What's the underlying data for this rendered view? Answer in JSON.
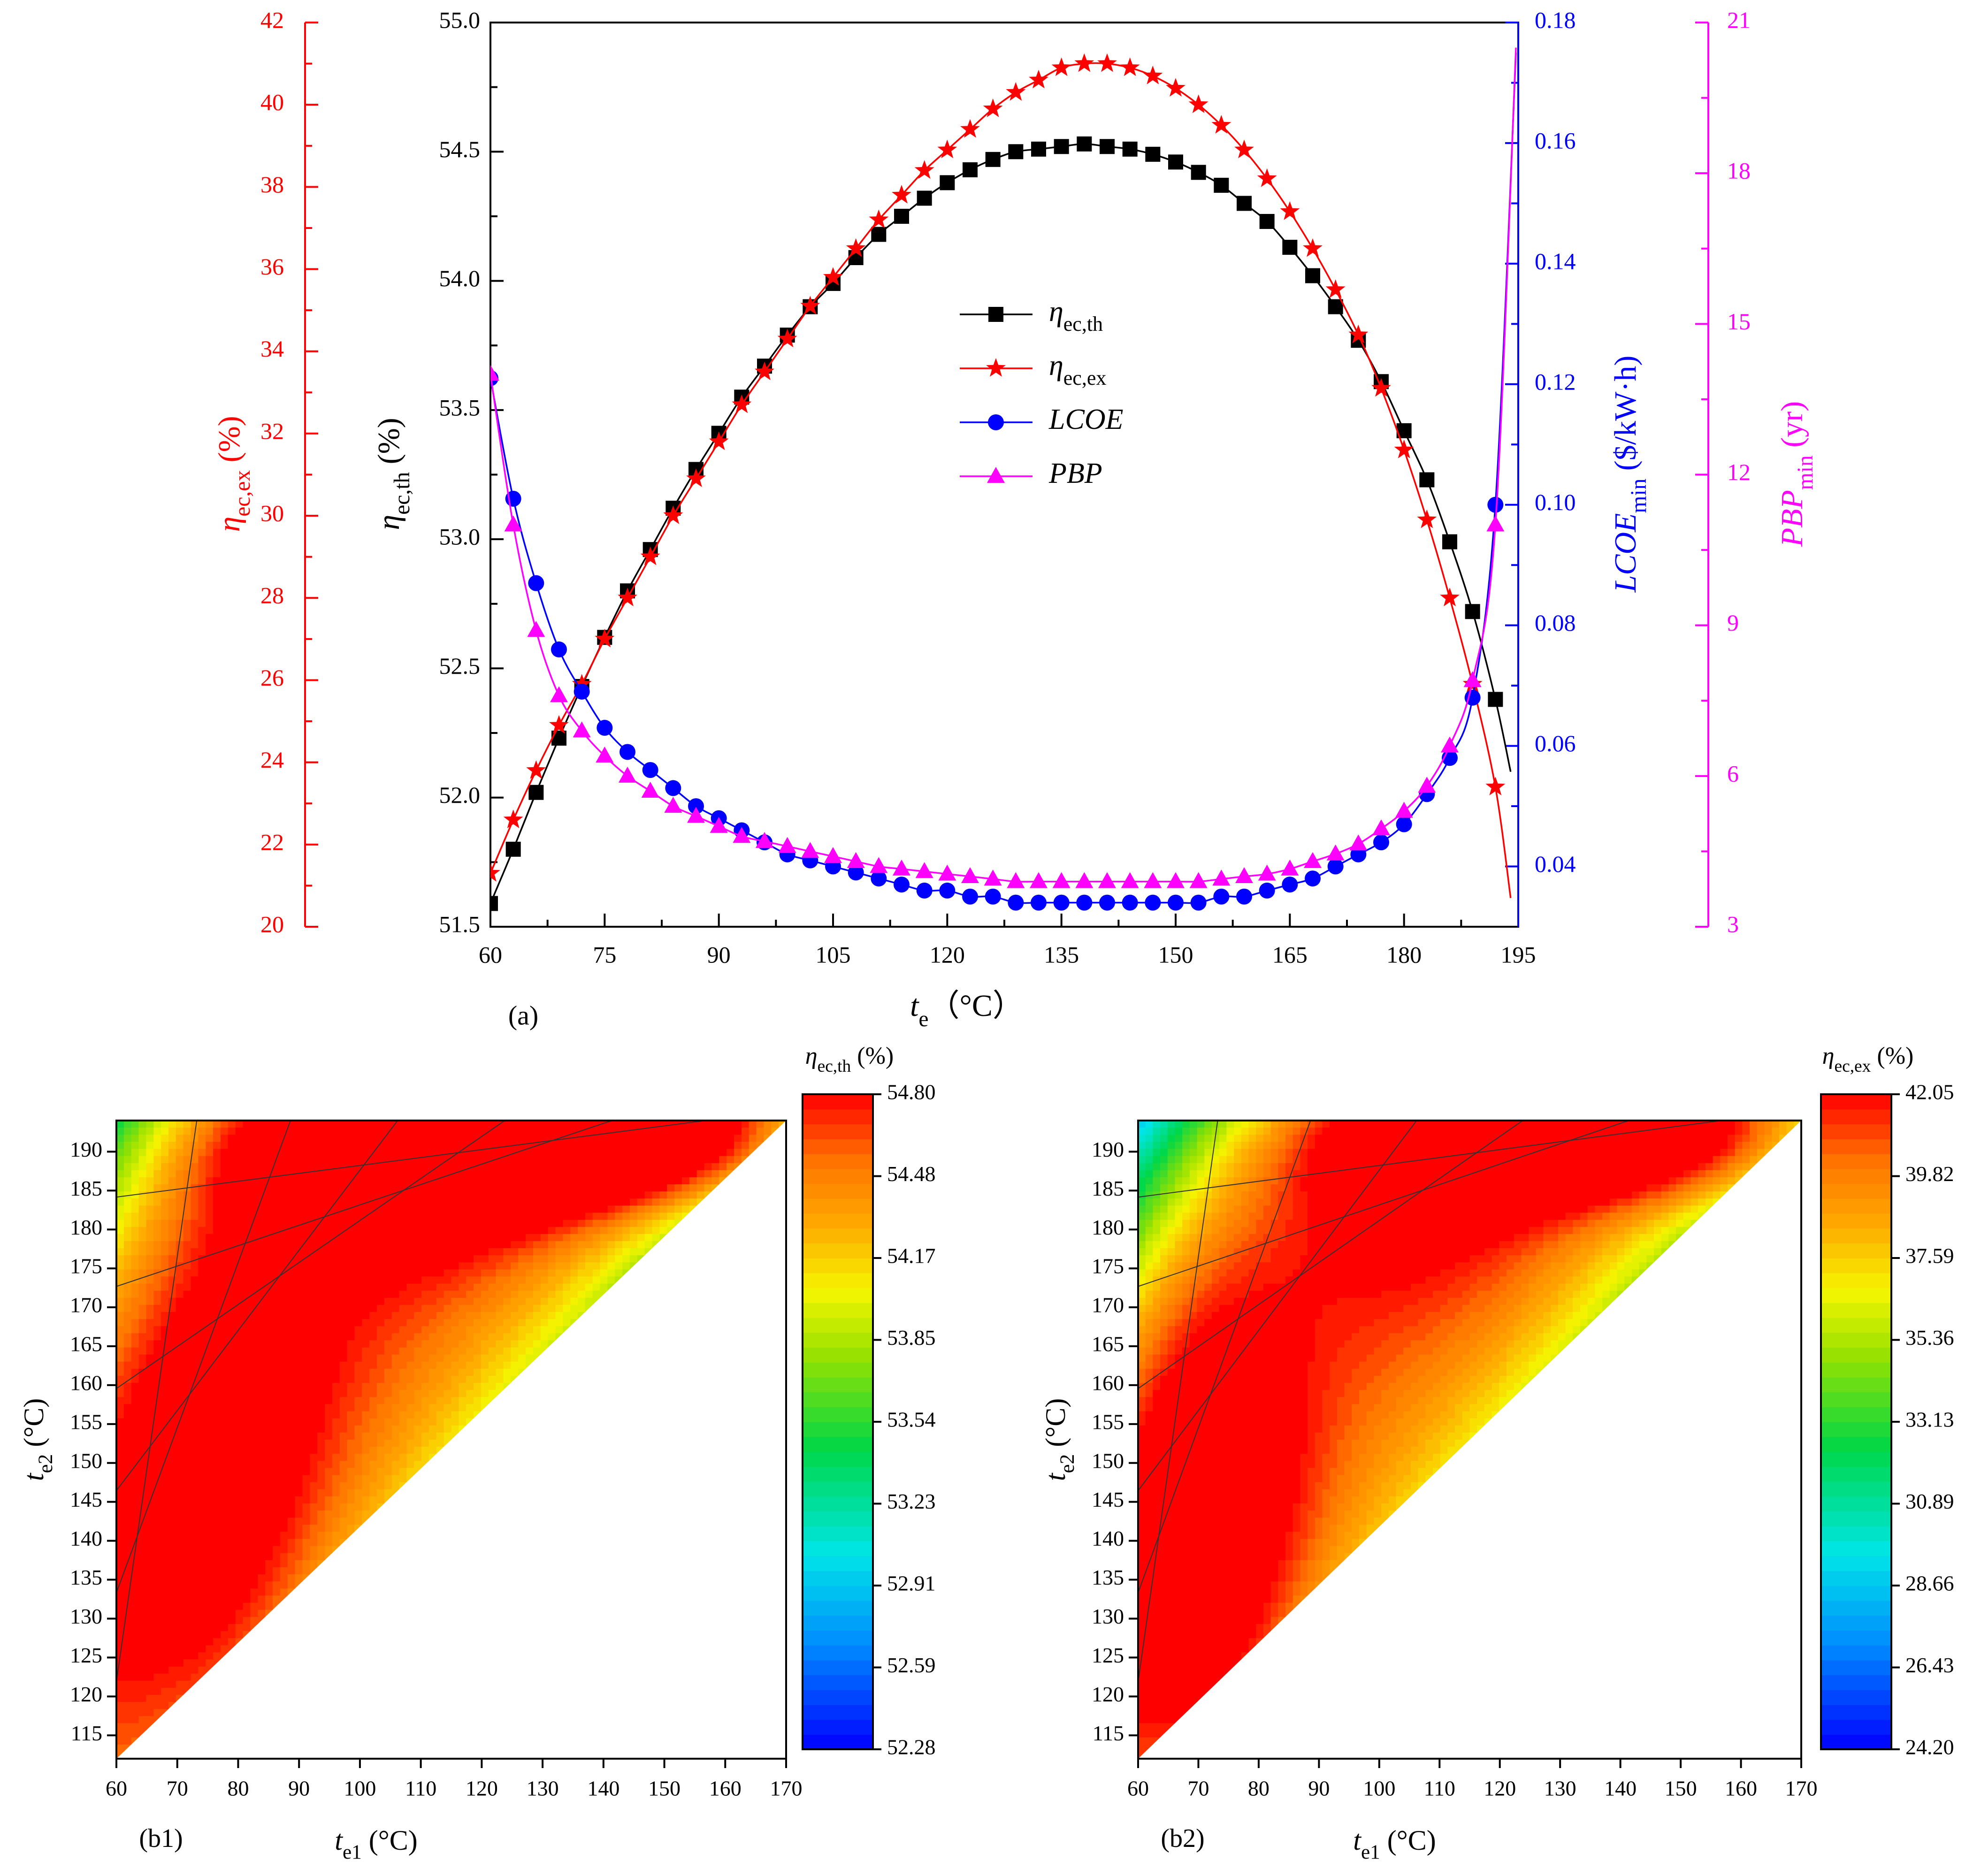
{
  "chart_data": [
    {
      "id": "a",
      "type": "line",
      "panel_label": "(a)",
      "x": [
        60,
        63,
        66,
        69,
        72,
        75,
        78,
        81,
        84,
        87,
        90,
        93,
        96,
        99,
        102,
        105,
        108,
        111,
        114,
        117,
        120,
        123,
        126,
        129,
        132,
        135,
        138,
        141,
        144,
        147,
        150,
        153,
        156,
        159,
        162,
        165,
        168,
        171,
        174,
        177,
        180,
        183,
        186,
        189,
        192
      ],
      "xlim": [
        60,
        195
      ],
      "xticks": [
        "60",
        "75",
        "90",
        "105",
        "120",
        "135",
        "150",
        "165",
        "180",
        "195"
      ],
      "xlabel": {
        "symbol": "t",
        "sub": "e",
        "unit": "（°C）"
      },
      "axes": {
        "eta_th": {
          "range": [
            51.5,
            55.0
          ],
          "color": "#000000",
          "ticks": [
            "51.5",
            "52.0",
            "52.5",
            "53.0",
            "53.5",
            "54.0",
            "54.5",
            "55.0"
          ],
          "label": {
            "symbol": "η",
            "sub": "ec,th",
            "unit": " (%)"
          }
        },
        "eta_ex": {
          "range": [
            20,
            42
          ],
          "color": "#ff0000",
          "ticks": [
            "20",
            "22",
            "24",
            "26",
            "28",
            "30",
            "32",
            "34",
            "36",
            "38",
            "40",
            "42"
          ],
          "label": {
            "symbol": "η",
            "sub": "ec,ex",
            "unit": " (%)"
          }
        },
        "lcoe": {
          "range": [
            0.03,
            0.18
          ],
          "color": "#0000ff",
          "ticks": [
            "0.04",
            "0.06",
            "0.08",
            "0.10",
            "0.12",
            "0.14",
            "0.16",
            "0.18"
          ],
          "label": {
            "symbol": "LCOE",
            "sub": "min",
            "unit": " ($/kW·h)"
          }
        },
        "pbp": {
          "range": [
            3,
            21
          ],
          "color": "#ff00ff",
          "ticks": [
            "3",
            "6",
            "9",
            "12",
            "15",
            "18",
            "21"
          ],
          "label": {
            "symbol": "PBP",
            "sub": "min",
            "unit": " (yr)"
          }
        }
      },
      "series": [
        {
          "key": "eta_th",
          "name": "η",
          "name_sub": "ec,th",
          "color": "#000000",
          "marker": "square",
          "values": [
            51.59,
            51.8,
            52.02,
            52.23,
            52.43,
            52.62,
            52.8,
            52.96,
            53.12,
            53.27,
            53.41,
            53.55,
            53.67,
            53.79,
            53.9,
            53.99,
            54.09,
            54.18,
            54.25,
            54.32,
            54.38,
            54.43,
            54.47,
            54.5,
            54.51,
            54.52,
            54.53,
            54.52,
            54.51,
            54.49,
            54.46,
            54.42,
            54.37,
            54.3,
            54.23,
            54.13,
            54.02,
            53.9,
            53.77,
            53.61,
            53.42,
            53.23,
            52.99,
            52.72,
            52.38
          ],
          "curve_end": [
            194,
            52.1
          ]
        },
        {
          "key": "eta_ex",
          "name": "η",
          "name_sub": "ec,ex",
          "color": "#ff0000",
          "marker": "star",
          "values": [
            21.3,
            22.6,
            23.8,
            24.9,
            25.9,
            27.0,
            28.0,
            29.0,
            30.0,
            30.9,
            31.8,
            32.7,
            33.5,
            34.3,
            35.1,
            35.8,
            36.5,
            37.2,
            37.8,
            38.4,
            38.9,
            39.4,
            39.9,
            40.3,
            40.6,
            40.9,
            41.0,
            41.0,
            40.9,
            40.7,
            40.4,
            40.0,
            39.5,
            38.9,
            38.2,
            37.4,
            36.5,
            35.5,
            34.4,
            33.1,
            31.6,
            29.9,
            28.0,
            25.9,
            23.4
          ],
          "curve_end": [
            194,
            20.7
          ]
        },
        {
          "key": "lcoe",
          "name": "LCOE",
          "name_sub": "",
          "color": "#0000ff",
          "marker": "circle",
          "values": [
            0.121,
            0.101,
            0.087,
            0.076,
            0.069,
            0.063,
            0.059,
            0.056,
            0.053,
            0.05,
            0.048,
            0.046,
            0.044,
            0.042,
            0.041,
            0.04,
            0.039,
            0.038,
            0.037,
            0.036,
            0.036,
            0.035,
            0.035,
            0.034,
            0.034,
            0.034,
            0.034,
            0.034,
            0.034,
            0.034,
            0.034,
            0.034,
            0.035,
            0.035,
            0.036,
            0.037,
            0.038,
            0.04,
            0.042,
            0.044,
            0.047,
            0.052,
            0.058,
            0.068,
            0.1
          ],
          "curve_end": [
            194.7,
            0.175
          ]
        },
        {
          "key": "pbp",
          "name": "PBP",
          "name_sub": "",
          "color": "#ff00ff",
          "marker": "triangle",
          "values": [
            14.0,
            11.0,
            8.9,
            7.6,
            6.9,
            6.4,
            6.0,
            5.7,
            5.4,
            5.2,
            5.0,
            4.8,
            4.7,
            4.6,
            4.5,
            4.4,
            4.3,
            4.2,
            4.15,
            4.1,
            4.05,
            4.0,
            3.95,
            3.9,
            3.9,
            3.9,
            3.9,
            3.9,
            3.9,
            3.9,
            3.9,
            3.9,
            3.95,
            4.0,
            4.05,
            4.15,
            4.3,
            4.45,
            4.65,
            4.95,
            5.3,
            5.8,
            6.6,
            7.9,
            11.0
          ],
          "curve_end": [
            194.7,
            20.5
          ]
        }
      ]
    },
    {
      "id": "b1",
      "type": "heatmap",
      "panel_label": "(b1)",
      "xlim": [
        60,
        170
      ],
      "ylim": [
        112,
        194
      ],
      "xticks": [
        "60",
        "70",
        "80",
        "90",
        "100",
        "110",
        "120",
        "130",
        "140",
        "150",
        "160",
        "170"
      ],
      "yticks": [
        "115",
        "120",
        "125",
        "130",
        "135",
        "140",
        "145",
        "150",
        "155",
        "160",
        "165",
        "170",
        "175",
        "180",
        "185",
        "190"
      ],
      "xlabel": {
        "symbol": "t",
        "sub": "e1",
        "unit": " (°C)"
      },
      "ylabel": {
        "symbol": "t",
        "sub": "e2",
        "unit": " (°C)"
      },
      "colorbar_title": {
        "symbol": "η",
        "sub": "ec,th",
        "unit": " (%)"
      },
      "colorbar_ticks": [
        "52.28",
        "52.59",
        "52.91",
        "53.23",
        "53.54",
        "53.85",
        "54.17",
        "54.48",
        "54.80"
      ],
      "value_range": [
        52.28,
        54.8
      ],
      "peak": {
        "t_e1": 75,
        "t_e2": 150,
        "value": 54.6
      },
      "secondary_peak": {
        "t_e1": 135,
        "t_e2": 192,
        "value": 54.8
      }
    },
    {
      "id": "b2",
      "type": "heatmap",
      "panel_label": "(b2)",
      "xlim": [
        60,
        170
      ],
      "ylim": [
        112,
        194
      ],
      "xticks": [
        "60",
        "70",
        "80",
        "90",
        "100",
        "110",
        "120",
        "130",
        "140",
        "150",
        "160",
        "170"
      ],
      "yticks": [
        "115",
        "120",
        "125",
        "130",
        "135",
        "140",
        "145",
        "150",
        "155",
        "160",
        "165",
        "170",
        "175",
        "180",
        "185",
        "190"
      ],
      "xlabel": {
        "symbol": "t",
        "sub": "e1",
        "unit": " (°C)"
      },
      "ylabel": {
        "symbol": "t",
        "sub": "e2",
        "unit": " (°C)"
      },
      "colorbar_title": {
        "symbol": "η",
        "sub": "ec,ex",
        "unit": " (%)"
      },
      "colorbar_ticks": [
        "24.20",
        "26.43",
        "28.66",
        "30.89",
        "33.13",
        "35.36",
        "37.59",
        "39.82",
        "42.05"
      ],
      "value_range": [
        24.2,
        42.05
      ],
      "peak": {
        "t_e1": 70,
        "t_e2": 145,
        "value": 41.6
      },
      "secondary_peak": {
        "t_e1": 135,
        "t_e2": 192,
        "value": 42.0
      }
    }
  ]
}
